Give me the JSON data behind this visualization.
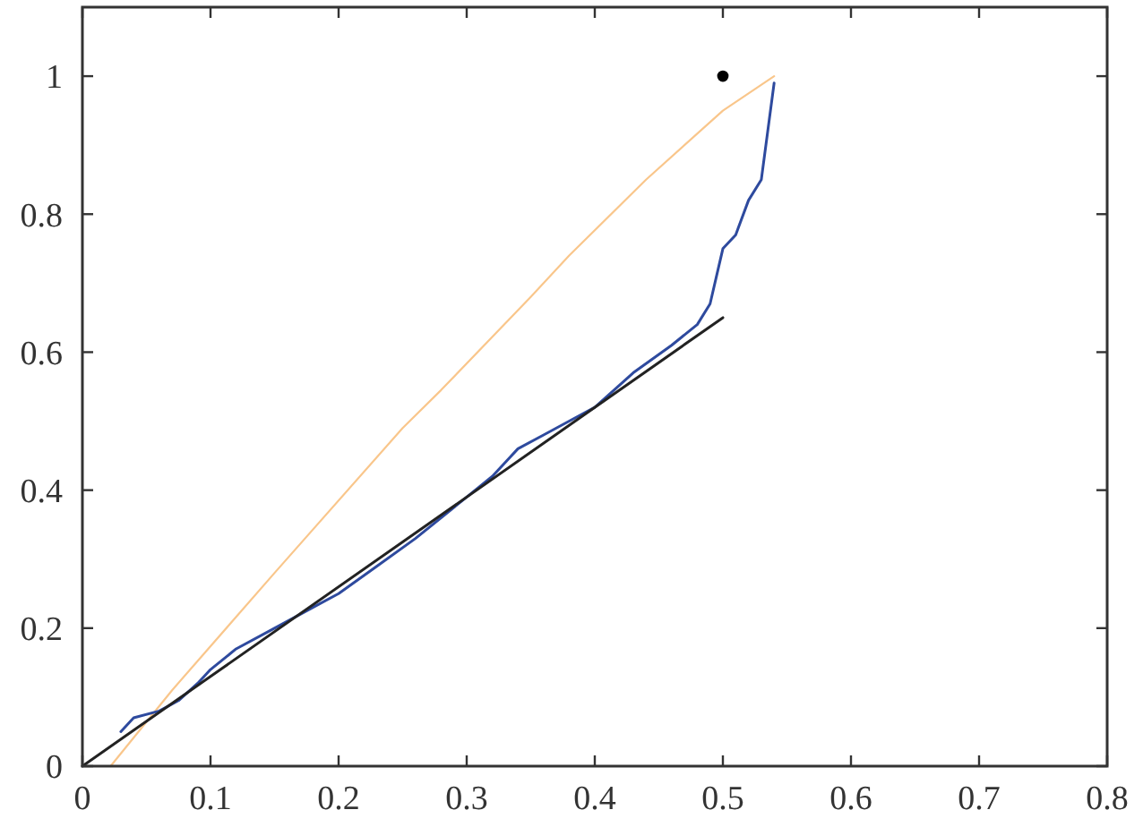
{
  "chart_data": {
    "type": "line",
    "xlim": [
      0,
      0.8
    ],
    "xticks": [
      0,
      0.1,
      0.2,
      0.3,
      0.4,
      0.5,
      0.6,
      0.7,
      0.8
    ],
    "ylim": [
      0,
      1.1
    ],
    "yticks": [
      0,
      0.2,
      0.4,
      0.6,
      0.8,
      1
    ],
    "series": [
      {
        "color": "#f9c68b",
        "x": [
          0.022,
          0.07,
          0.15,
          0.25,
          0.28,
          0.35,
          0.38,
          0.44,
          0.5,
          0.54
        ],
        "values": [
          0,
          0.11,
          0.28,
          0.49,
          0.545,
          0.68,
          0.74,
          0.85,
          0.95,
          1.0
        ]
      },
      {
        "color": "#2e4a9e",
        "x": [
          0.03,
          0.04,
          0.06,
          0.075,
          0.09,
          0.1,
          0.12,
          0.15,
          0.18,
          0.2,
          0.23,
          0.26,
          0.3,
          0.32,
          0.34,
          0.36,
          0.38,
          0.4,
          0.43,
          0.46,
          0.48,
          0.49,
          0.495,
          0.5,
          0.51,
          0.52,
          0.53,
          0.535,
          0.54
        ],
        "values": [
          0.05,
          0.07,
          0.08,
          0.095,
          0.12,
          0.14,
          0.17,
          0.2,
          0.23,
          0.25,
          0.29,
          0.33,
          0.39,
          0.42,
          0.46,
          0.48,
          0.5,
          0.52,
          0.57,
          0.61,
          0.64,
          0.67,
          0.71,
          0.75,
          0.77,
          0.82,
          0.85,
          0.92,
          0.99
        ]
      },
      {
        "color": "#222222",
        "x": [
          0,
          0.5
        ],
        "values": [
          0,
          0.65
        ]
      },
      {
        "type": "scatter",
        "color": "#000000",
        "marker": "circle",
        "x": [
          0.5
        ],
        "values": [
          1
        ]
      }
    ]
  }
}
